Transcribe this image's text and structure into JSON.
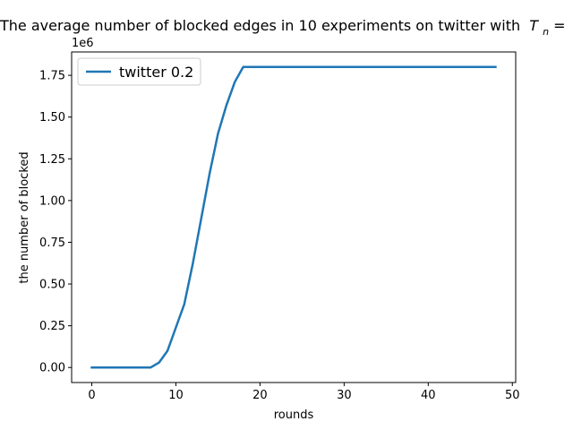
{
  "chart_data": {
    "type": "line",
    "title": "The average number of blocked edges in 10 experiments on twitter with",
    "title_math_symbol": "T",
    "title_math_subscript": "n",
    "title_trailing": " =",
    "xlabel": "rounds",
    "ylabel": "the number of blocked",
    "y_offset_label": "1e6",
    "xlim": [
      -2.4,
      50.4
    ],
    "ylim": [
      -0.09,
      1.89
    ],
    "x_ticks": [
      0,
      10,
      20,
      30,
      40,
      50
    ],
    "x_tick_labels": [
      "0",
      "10",
      "20",
      "30",
      "40",
      "50"
    ],
    "y_ticks": [
      0,
      0.25,
      0.5,
      0.75,
      1.0,
      1.25,
      1.5,
      1.75
    ],
    "y_tick_labels": [
      "0.00",
      "0.25",
      "0.50",
      "0.75",
      "1.00",
      "1.25",
      "1.50",
      "1.75"
    ],
    "grid": false,
    "legend_position": "upper-left",
    "series": [
      {
        "name": "twitter 0.2",
        "color": "#1f77b4",
        "x": [
          0,
          1,
          2,
          3,
          4,
          5,
          6,
          7,
          8,
          9,
          10,
          11,
          12,
          13,
          14,
          15,
          16,
          17,
          18,
          19,
          20,
          21,
          22,
          23,
          24,
          25,
          26,
          27,
          28,
          29,
          30,
          31,
          32,
          33,
          34,
          35,
          36,
          37,
          38,
          39,
          40,
          41,
          42,
          43,
          44,
          45,
          46,
          47,
          48
        ],
        "y": [
          0,
          0,
          0,
          0,
          0,
          0,
          0,
          0,
          0.03,
          0.1,
          0.24,
          0.38,
          0.62,
          0.89,
          1.16,
          1.4,
          1.57,
          1.71,
          1.8,
          1.8,
          1.8,
          1.8,
          1.8,
          1.8,
          1.8,
          1.8,
          1.8,
          1.8,
          1.8,
          1.8,
          1.8,
          1.8,
          1.8,
          1.8,
          1.8,
          1.8,
          1.8,
          1.8,
          1.8,
          1.8,
          1.8,
          1.8,
          1.8,
          1.8,
          1.8,
          1.8,
          1.8,
          1.8,
          1.8
        ]
      }
    ]
  }
}
